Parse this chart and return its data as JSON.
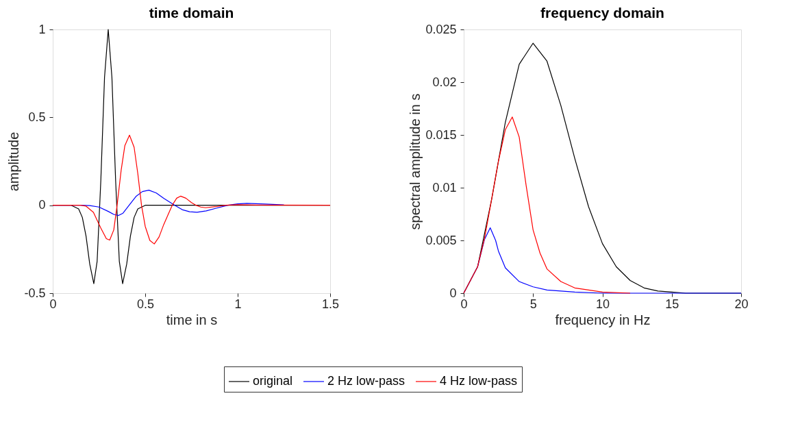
{
  "chart_data": [
    {
      "type": "line",
      "title": "time domain",
      "xlabel": "time in s",
      "ylabel": "amplitude",
      "xlim": [
        0,
        1.5
      ],
      "ylim": [
        -0.5,
        1
      ],
      "xticks": [
        0,
        0.5,
        1,
        1.5
      ],
      "yticks": [
        -0.5,
        0,
        0.5,
        1
      ],
      "grid": false,
      "legend": "bottom",
      "marker": "none",
      "line_style": "solid",
      "series": [
        {
          "name": "original",
          "color": "#000000",
          "x": [
            0,
            0.1,
            0.14,
            0.16,
            0.18,
            0.2,
            0.222,
            0.24,
            0.26,
            0.28,
            0.3,
            0.32,
            0.34,
            0.36,
            0.378,
            0.4,
            0.42,
            0.44,
            0.46,
            0.5,
            1.5
          ],
          "values": [
            0,
            0,
            -0.021,
            -0.069,
            -0.175,
            -0.334,
            -0.446,
            -0.319,
            0.141,
            0.727,
            1,
            0.727,
            0.141,
            -0.319,
            -0.446,
            -0.334,
            -0.175,
            -0.069,
            -0.021,
            0,
            0
          ]
        },
        {
          "name": "2 Hz low-pass",
          "color": "#0000ff",
          "x": [
            0,
            0.15,
            0.2,
            0.25,
            0.3,
            0.33,
            0.356,
            0.38,
            0.413,
            0.45,
            0.485,
            0.52,
            0.56,
            0.6,
            0.66,
            0.7,
            0.74,
            0.78,
            0.83,
            0.88,
            0.947,
            1.0,
            1.05,
            1.15,
            1.25
          ],
          "values": [
            0,
            0,
            -0.002,
            -0.01,
            -0.035,
            -0.052,
            -0.058,
            -0.045,
            0,
            0.05,
            0.078,
            0.086,
            0.07,
            0.04,
            0,
            -0.025,
            -0.037,
            -0.04,
            -0.032,
            -0.018,
            0,
            0.008,
            0.011,
            0.007,
            0.002
          ]
        },
        {
          "name": "4 Hz low-pass",
          "color": "#ff0000",
          "x": [
            0,
            0.15,
            0.18,
            0.22,
            0.26,
            0.29,
            0.308,
            0.33,
            0.348,
            0.37,
            0.39,
            0.415,
            0.44,
            0.46,
            0.48,
            0.5,
            0.525,
            0.549,
            0.575,
            0.6,
            0.625,
            0.646,
            0.67,
            0.692,
            0.72,
            0.75,
            0.775,
            0.8,
            0.826,
            0.88,
            0.935,
            1.0,
            1.1,
            1.5
          ],
          "values": [
            0,
            0,
            -0.005,
            -0.04,
            -0.13,
            -0.19,
            -0.198,
            -0.14,
            0,
            0.2,
            0.34,
            0.399,
            0.33,
            0.18,
            0,
            -0.12,
            -0.2,
            -0.22,
            -0.18,
            -0.11,
            -0.05,
            0,
            0.04,
            0.052,
            0.04,
            0.015,
            0,
            -0.01,
            -0.014,
            -0.008,
            0,
            0.003,
            0.001,
            0
          ]
        }
      ]
    },
    {
      "type": "line",
      "title": "frequency domain",
      "xlabel": "frequency in Hz",
      "ylabel": "spectral amplitude in s",
      "xlim": [
        0,
        20
      ],
      "ylim": [
        0,
        0.025
      ],
      "xticks": [
        0,
        5,
        10,
        15,
        20
      ],
      "yticks": [
        0,
        0.005,
        0.01,
        0.015,
        0.02,
        0.025
      ],
      "grid": false,
      "legend": "bottom",
      "marker": "none",
      "line_style": "solid",
      "series": [
        {
          "name": "original",
          "color": "#000000",
          "x": [
            0,
            1,
            2,
            3,
            4,
            5,
            6,
            7,
            8,
            9,
            10,
            11,
            12,
            13,
            14,
            15,
            16,
            20
          ],
          "values": [
            0,
            0.0025,
            0.0088,
            0.0162,
            0.0217,
            0.0237,
            0.022,
            0.0178,
            0.0128,
            0.0082,
            0.0047,
            0.0025,
            0.0012,
            0.0005,
            0.0002,
            0.0001,
            0,
            0
          ]
        },
        {
          "name": "2 Hz low-pass",
          "color": "#0000ff",
          "x": [
            0,
            1,
            1.5,
            1.91,
            2.3,
            2.5,
            3,
            4,
            5,
            6,
            8,
            10,
            20
          ],
          "values": [
            0,
            0.0025,
            0.0051,
            0.0062,
            0.005,
            0.004,
            0.0024,
            0.0011,
            0.0006,
            0.0003,
            0.0001,
            0,
            0
          ]
        },
        {
          "name": "4 Hz low-pass",
          "color": "#ff0000",
          "x": [
            0,
            1,
            1.5,
            2,
            2.5,
            3,
            3.5,
            4,
            4.5,
            5,
            5.5,
            6,
            7,
            8,
            10,
            12
          ],
          "values": [
            0,
            0.0025,
            0.0052,
            0.0088,
            0.0125,
            0.0155,
            0.0167,
            0.0148,
            0.0102,
            0.006,
            0.0038,
            0.0023,
            0.0011,
            0.0005,
            0.0001,
            0
          ]
        }
      ]
    }
  ]
}
